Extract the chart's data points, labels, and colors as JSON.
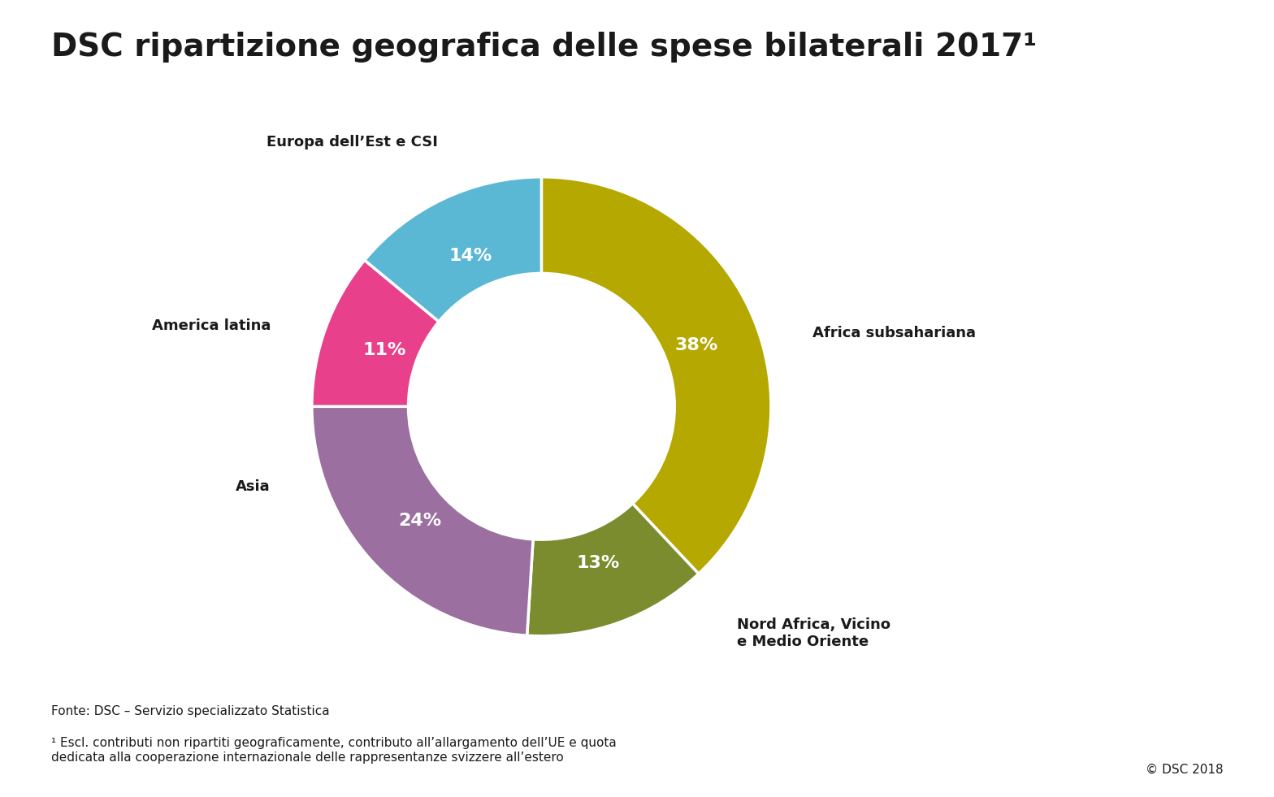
{
  "title": "DSC ripartizione geografica delle spese bilaterali 2017¹",
  "slices": [
    {
      "label": "Africa subsahariana",
      "pct": 38,
      "color": "#b5a800",
      "text_color": "#ffffff"
    },
    {
      "label": "Nord Africa, Vicino\ne Medio Oriente",
      "pct": 13,
      "color": "#7a8c2e",
      "text_color": "#ffffff"
    },
    {
      "label": "Asia",
      "pct": 24,
      "color": "#9b6fa0",
      "text_color": "#ffffff"
    },
    {
      "label": "America latina",
      "pct": 11,
      "color": "#e8408a",
      "text_color": "#ffffff"
    },
    {
      "label": "Europa dell’Est e CSI",
      "pct": 14,
      "color": "#5bb8d4",
      "text_color": "#ffffff"
    }
  ],
  "source_line1": "Fonte: DSC – Servizio specializzato Statistica",
  "footnote": "¹ Escl. contributi non ripartiti geograficamente, contributo all’allargamento dell’UE e quota\ndedicata alla cooperazione internazionale delle rappresentanze svizzere all’estero",
  "copyright": "© DSC 2018",
  "background_color": "#ffffff",
  "title_fontsize": 28,
  "label_fontsize": 13,
  "pct_fontsize": 16,
  "footer_fontsize": 11
}
